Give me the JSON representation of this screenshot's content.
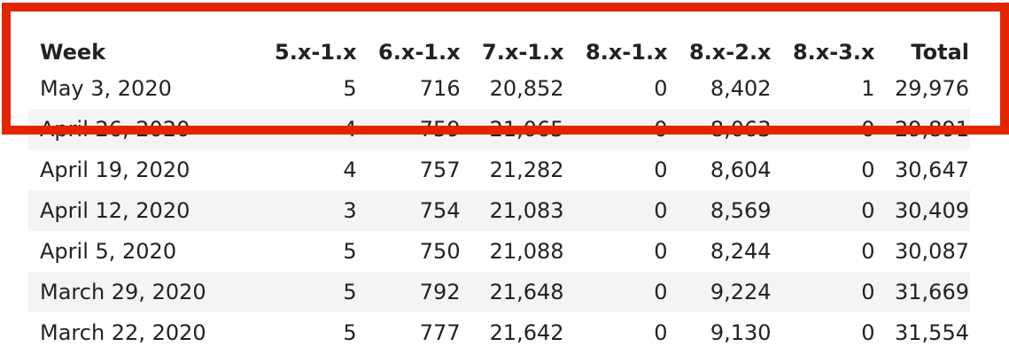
{
  "table": {
    "columns": [
      "Week",
      "5.x-1.x",
      "6.x-1.x",
      "7.x-1.x",
      "8.x-1.x",
      "8.x-2.x",
      "8.x-3.x",
      "Total"
    ],
    "rows": [
      [
        "May 3, 2020",
        "5",
        "716",
        "20,852",
        "0",
        "8,402",
        "1",
        "29,976"
      ],
      [
        "April 26, 2020",
        "4",
        "759",
        "21,065",
        "0",
        "8,063",
        "0",
        "29,891"
      ],
      [
        "April 19, 2020",
        "4",
        "757",
        "21,282",
        "0",
        "8,604",
        "0",
        "30,647"
      ],
      [
        "April 12, 2020",
        "3",
        "754",
        "21,083",
        "0",
        "8,569",
        "0",
        "30,409"
      ],
      [
        "April 5, 2020",
        "5",
        "750",
        "21,088",
        "0",
        "8,244",
        "0",
        "30,087"
      ],
      [
        "March 29, 2020",
        "5",
        "792",
        "21,648",
        "0",
        "9,224",
        "0",
        "31,669"
      ],
      [
        "March 22, 2020",
        "5",
        "777",
        "21,642",
        "0",
        "9,130",
        "0",
        "31,554"
      ]
    ]
  },
  "highlight_color": "#e32400"
}
